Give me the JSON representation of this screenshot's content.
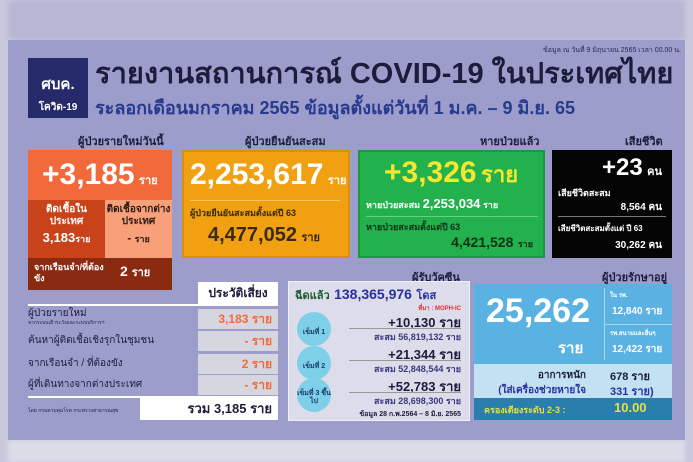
{
  "header": {
    "note": "ข้อมูล ณ วันที่ 9 มิถุนายน 2565 เวลา 00.00 น.",
    "logo_line1": "ศบค.",
    "logo_line2": "โควิด-19",
    "title": "รายงานสถานการณ์ COVID-19 ในประเทศไทย",
    "subtitle": "ระลอกเดือนมกราคม 2565 ข้อมูลตั้งแต่วันที่ 1 ม.ค. – 9 มิ.ย. 65"
  },
  "new_cases": {
    "label": "ผู้ป่วยรายใหม่วันนี้",
    "value": "+3,185",
    "unit": "ราย",
    "domestic_label": "ติดเชื้อในประเทศ",
    "domestic_value": "3,183",
    "abroad_label": "ติดเชื้อจากต่างประเทศ",
    "abroad_value": "-",
    "prison_label": "จากเรือนจำ/ที่ต้องขัง",
    "prison_value": "2",
    "color": "#f26a3c"
  },
  "cumulative": {
    "label": "ผู้ป่วยยืนยันสะสม",
    "value": "2,253,617",
    "unit": "ราย",
    "since_label": "ผู้ป่วยยืนยันสะสมตั้งแต่ปี 63",
    "since_value": "4,477,052",
    "color": "#f0a010"
  },
  "recovered": {
    "label": "หายป่วยแล้ว",
    "value": "+3,326",
    "unit": "ราย",
    "cum_label": "หายป่วยสะสม",
    "cum_value": "2,253,034",
    "since_label": "หายป่วยสะสมตั้งแต่ปี 63",
    "since_value": "4,421,528",
    "color": "#22b14c"
  },
  "deaths": {
    "label": "เสียชีวิต",
    "value": "+23",
    "unit": "คน",
    "cum_label": "เสียชีวิตสะสม",
    "cum_value": "8,564",
    "since_label": "เสียชีวิตสะสมตั้งแต่ ปี 63",
    "since_value": "30,262"
  },
  "risk": {
    "title": "ประวัติเสี่ยง",
    "rows": [
      {
        "label": "ผู้ป่วยรายใหม่",
        "sub": "จากระบบเฝ้าระวังและระบบบริการฯ",
        "value": "3,183 ราย"
      },
      {
        "label": "ค้นหาผู้ติดเชื้อเชิงรุกในชุมชน",
        "value": "- ราย"
      },
      {
        "label": "จากเรือนจำ / ที่ต้องขัง",
        "value": "2 ราย"
      },
      {
        "label": "ผู้ที่เดินทางจากต่างประเทศ",
        "value": "- ราย"
      }
    ],
    "total": "รวม 3,185 ราย",
    "source": "โดย กรมควบคุมโรค กระทรวงสาธารณสุข"
  },
  "vaccine": {
    "label": "ผู้รับวัคซีน",
    "injected_label": "ฉีดแล้ว",
    "total": "138,365,976",
    "total_unit": "โดส",
    "source": "ที่มา : MOPH-IC",
    "doses": [
      {
        "name": "เข็มที่ 1",
        "new": "+10,130 ราย",
        "cum": "สะสม 56,819,132 ราย"
      },
      {
        "name": "เข็มที่ 2",
        "new": "+21,344 ราย",
        "cum": "สะสม 52,848,544 ราย"
      },
      {
        "name": "เข็มที่ 3 ขึ้นไป",
        "new": "+52,783 ราย",
        "cum": "สะสม 28,698,300 ราย"
      }
    ],
    "date_note": "ข้อมูล 28 ก.พ.2564 – 8 มิ.ย. 2565"
  },
  "treatment": {
    "label": "ผู้ป่วยรักษาอยู่",
    "value": "25,262",
    "unit": "ราย",
    "hospital_label": "ใน รพ.",
    "hospital_value": "12,840 ราย",
    "field_label": "รพ.สนามและอื่นๆ",
    "field_value": "12,422 ราย",
    "severe_label": "อาการหนัก",
    "severe_value": "678 ราย",
    "vent_label": "(ใส่เครื่องช่วยหายใจ",
    "vent_value": "331 ราย)",
    "bed_label": "ครองเตียงระดับ 2-3 :",
    "bed_value": "10.00"
  }
}
